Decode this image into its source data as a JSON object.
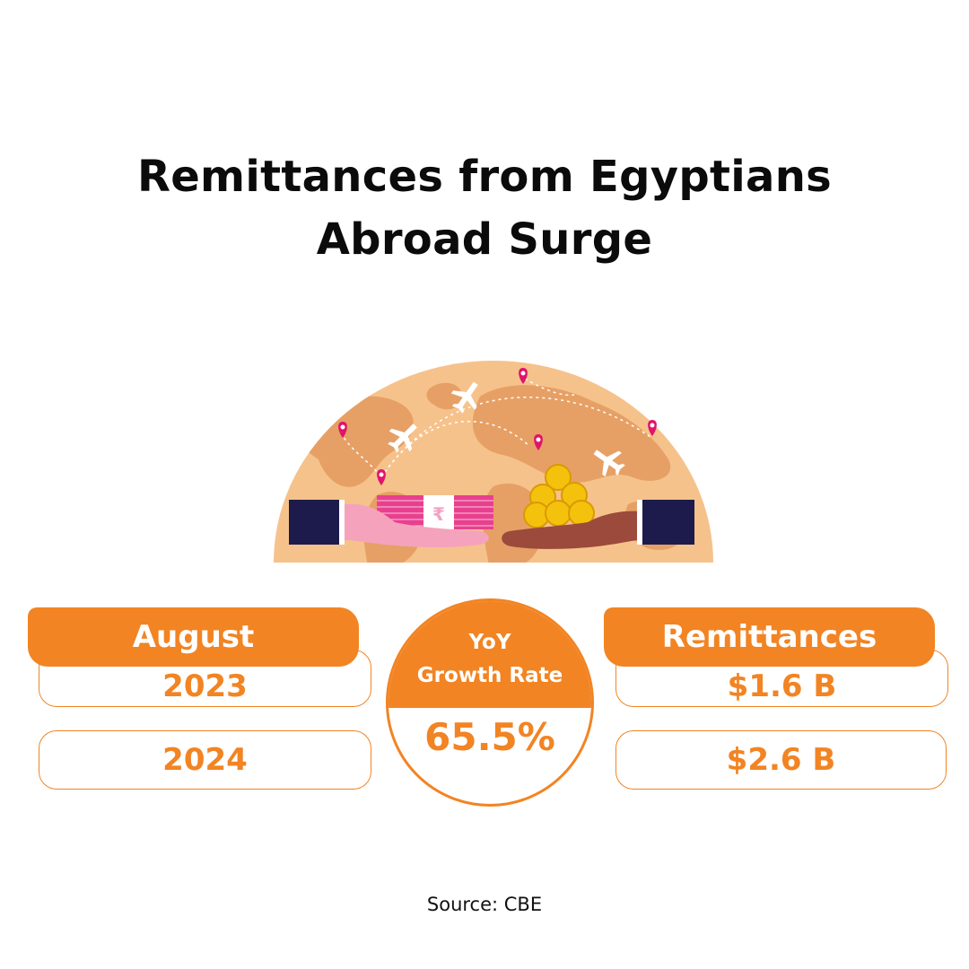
{
  "title": {
    "line1": "Remittances from Egyptians",
    "line2": "Abroad Surge"
  },
  "left": {
    "header": "August",
    "rows": [
      "2023",
      "2024"
    ]
  },
  "center": {
    "label_line1": "YoY",
    "label_line2": "Growth Rate",
    "value": "65.5%"
  },
  "right": {
    "header": "Remittances",
    "rows": [
      "$1.6 B",
      "$2.6 B"
    ]
  },
  "source": "Source: CBE",
  "illustration": {
    "currency_symbol": "₹"
  },
  "colors": {
    "accent": "#f28423",
    "globe": "#f6c28b",
    "land": "#e6a065",
    "pin": "#e0146b",
    "sleeve": "#1d1b4c"
  }
}
